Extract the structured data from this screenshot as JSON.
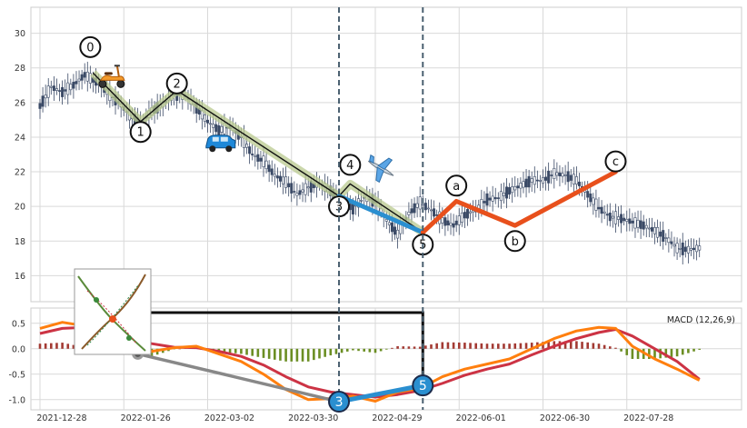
{
  "chart_data": {
    "type": "candlestick",
    "panels": [
      "price",
      "macd"
    ],
    "x_ticks": [
      "2021-12-28",
      "2022-01-26",
      "2022-03-02",
      "2022-03-30",
      "2022-04-29",
      "2022-06-01",
      "2022-06-30",
      "2022-07-28"
    ],
    "price_axis": {
      "ylim": [
        14.5,
        31.5
      ],
      "ticks": [
        "16",
        "18",
        "20",
        "22",
        "24",
        "26",
        "28",
        "30"
      ]
    },
    "macd_axis": {
      "ylim": [
        -1.2,
        0.8
      ],
      "ticks": [
        "0.5",
        "0.0",
        "-0.5",
        "-1.0"
      ],
      "label": "MACD (12,26,9)"
    },
    "price_series": [
      {
        "x": 0,
        "y": 25.8
      },
      {
        "x": 4,
        "y": 26.9
      },
      {
        "x": 8,
        "y": 26.6
      },
      {
        "x": 12,
        "y": 27.0
      },
      {
        "x": 16,
        "y": 27.6
      },
      {
        "x": 20,
        "y": 27.2
      },
      {
        "x": 24,
        "y": 26.6
      },
      {
        "x": 28,
        "y": 26.0
      },
      {
        "x": 32,
        "y": 25.3
      },
      {
        "x": 36,
        "y": 24.8
      },
      {
        "x": 40,
        "y": 25.5
      },
      {
        "x": 44,
        "y": 25.9
      },
      {
        "x": 48,
        "y": 26.5
      },
      {
        "x": 52,
        "y": 26.4
      },
      {
        "x": 56,
        "y": 25.7
      },
      {
        "x": 60,
        "y": 24.9
      },
      {
        "x": 64,
        "y": 24.4
      },
      {
        "x": 68,
        "y": 24.6
      },
      {
        "x": 72,
        "y": 24.0
      },
      {
        "x": 76,
        "y": 23.0
      },
      {
        "x": 80,
        "y": 22.6
      },
      {
        "x": 84,
        "y": 21.8
      },
      {
        "x": 88,
        "y": 21.4
      },
      {
        "x": 92,
        "y": 20.7
      },
      {
        "x": 96,
        "y": 21.1
      },
      {
        "x": 100,
        "y": 21.3
      },
      {
        "x": 104,
        "y": 20.9
      },
      {
        "x": 108,
        "y": 20.2
      },
      {
        "x": 112,
        "y": 19.9
      },
      {
        "x": 116,
        "y": 20.5
      },
      {
        "x": 120,
        "y": 20.3
      },
      {
        "x": 124,
        "y": 19.2
      },
      {
        "x": 128,
        "y": 18.4
      },
      {
        "x": 132,
        "y": 19.6
      },
      {
        "x": 136,
        "y": 20.2
      },
      {
        "x": 140,
        "y": 19.8
      },
      {
        "x": 144,
        "y": 19.2
      },
      {
        "x": 148,
        "y": 18.9
      },
      {
        "x": 152,
        "y": 19.5
      },
      {
        "x": 156,
        "y": 19.8
      },
      {
        "x": 160,
        "y": 20.4
      },
      {
        "x": 164,
        "y": 20.5
      },
      {
        "x": 168,
        "y": 20.9
      },
      {
        "x": 172,
        "y": 21.2
      },
      {
        "x": 176,
        "y": 21.5
      },
      {
        "x": 180,
        "y": 21.5
      },
      {
        "x": 184,
        "y": 21.9
      },
      {
        "x": 188,
        "y": 21.8
      },
      {
        "x": 192,
        "y": 21.5
      },
      {
        "x": 196,
        "y": 20.7
      },
      {
        "x": 200,
        "y": 19.9
      },
      {
        "x": 204,
        "y": 19.4
      },
      {
        "x": 208,
        "y": 19.3
      },
      {
        "x": 212,
        "y": 19.1
      },
      {
        "x": 216,
        "y": 18.9
      },
      {
        "x": 220,
        "y": 18.6
      },
      {
        "x": 224,
        "y": 18.2
      },
      {
        "x": 228,
        "y": 17.6
      },
      {
        "x": 232,
        "y": 17.5
      },
      {
        "x": 236,
        "y": 17.6
      }
    ],
    "wave_labels": [
      {
        "label": "0",
        "x": 18,
        "y": 29.2
      },
      {
        "label": "1",
        "x": 36,
        "y": 24.3
      },
      {
        "label": "2",
        "x": 49,
        "y": 27.1
      },
      {
        "label": "3",
        "x": 107,
        "y": 20.0
      },
      {
        "label": "4",
        "x": 111,
        "y": 22.4
      },
      {
        "label": "5",
        "x": 137,
        "y": 17.8
      },
      {
        "label": "a",
        "x": 149,
        "y": 21.2
      },
      {
        "label": "b",
        "x": 170,
        "y": 18.0
      },
      {
        "label": "c",
        "x": 206,
        "y": 22.6
      }
    ],
    "impulse_wave": [
      {
        "x": 19,
        "y": 27.7
      },
      {
        "x": 36,
        "y": 24.9
      },
      {
        "x": 49,
        "y": 26.7
      },
      {
        "x": 107,
        "y": 20.6
      },
      {
        "x": 111,
        "y": 21.3
      },
      {
        "x": 137,
        "y": 18.5
      }
    ],
    "wave_3_5_segment": [
      {
        "x": 107,
        "y": 20.6
      },
      {
        "x": 137,
        "y": 18.5
      }
    ],
    "corrective_wave": [
      {
        "x": 137,
        "y": 18.5
      },
      {
        "x": 149,
        "y": 20.3
      },
      {
        "x": 170,
        "y": 18.9
      },
      {
        "x": 206,
        "y": 22.0
      }
    ],
    "vertical_markers_x": [
      107,
      137
    ],
    "macd": [
      {
        "x": 0,
        "y": 0.4
      },
      {
        "x": 8,
        "y": 0.52
      },
      {
        "x": 16,
        "y": 0.45
      },
      {
        "x": 24,
        "y": 0.3
      },
      {
        "x": 32,
        "y": 0.1
      },
      {
        "x": 40,
        "y": -0.05
      },
      {
        "x": 48,
        "y": 0.02
      },
      {
        "x": 56,
        "y": 0.05
      },
      {
        "x": 64,
        "y": -0.1
      },
      {
        "x": 72,
        "y": -0.25
      },
      {
        "x": 80,
        "y": -0.5
      },
      {
        "x": 88,
        "y": -0.8
      },
      {
        "x": 96,
        "y": -1.0
      },
      {
        "x": 104,
        "y": -0.98
      },
      {
        "x": 112,
        "y": -0.93
      },
      {
        "x": 120,
        "y": -1.03
      },
      {
        "x": 128,
        "y": -0.85
      },
      {
        "x": 136,
        "y": -0.78
      },
      {
        "x": 144,
        "y": -0.55
      },
      {
        "x": 152,
        "y": -0.4
      },
      {
        "x": 160,
        "y": -0.3
      },
      {
        "x": 168,
        "y": -0.2
      },
      {
        "x": 176,
        "y": 0.0
      },
      {
        "x": 184,
        "y": 0.2
      },
      {
        "x": 192,
        "y": 0.35
      },
      {
        "x": 200,
        "y": 0.42
      },
      {
        "x": 206,
        "y": 0.4
      },
      {
        "x": 212,
        "y": 0.05
      },
      {
        "x": 220,
        "y": -0.2
      },
      {
        "x": 228,
        "y": -0.4
      },
      {
        "x": 236,
        "y": -0.62
      }
    ],
    "signal": [
      {
        "x": 0,
        "y": 0.3
      },
      {
        "x": 8,
        "y": 0.4
      },
      {
        "x": 16,
        "y": 0.42
      },
      {
        "x": 24,
        "y": 0.35
      },
      {
        "x": 32,
        "y": 0.22
      },
      {
        "x": 40,
        "y": 0.1
      },
      {
        "x": 48,
        "y": 0.03
      },
      {
        "x": 56,
        "y": 0.02
      },
      {
        "x": 64,
        "y": -0.05
      },
      {
        "x": 72,
        "y": -0.15
      },
      {
        "x": 80,
        "y": -0.32
      },
      {
        "x": 88,
        "y": -0.55
      },
      {
        "x": 96,
        "y": -0.75
      },
      {
        "x": 104,
        "y": -0.85
      },
      {
        "x": 112,
        "y": -0.9
      },
      {
        "x": 120,
        "y": -0.95
      },
      {
        "x": 128,
        "y": -0.9
      },
      {
        "x": 136,
        "y": -0.82
      },
      {
        "x": 144,
        "y": -0.68
      },
      {
        "x": 152,
        "y": -0.52
      },
      {
        "x": 160,
        "y": -0.4
      },
      {
        "x": 168,
        "y": -0.3
      },
      {
        "x": 176,
        "y": -0.12
      },
      {
        "x": 184,
        "y": 0.05
      },
      {
        "x": 192,
        "y": 0.2
      },
      {
        "x": 200,
        "y": 0.32
      },
      {
        "x": 206,
        "y": 0.38
      },
      {
        "x": 212,
        "y": 0.25
      },
      {
        "x": 220,
        "y": 0.0
      },
      {
        "x": 228,
        "y": -0.25
      },
      {
        "x": 236,
        "y": -0.6
      }
    ],
    "macd_markers": [
      {
        "label": "3",
        "x": 107,
        "y": -1.04
      },
      {
        "label": "5",
        "x": 137,
        "y": -0.72
      }
    ],
    "macd_gray_point": {
      "x": 35,
      "y": -0.1
    },
    "colors": {
      "candle": "#3b4a66",
      "impulse_line": "#111111",
      "impulse_band": "#b9c98f",
      "wave_blue": "#2a8fd0",
      "wave_orange": "#e8501c",
      "macd_line": "#ff7f0e",
      "signal_line": "#cc3344",
      "hist_pos": "#a33a33",
      "hist_neg": "#6b8e23",
      "grid": "#d9d9d9",
      "marker_dashed": "#4a6070",
      "gray_link": "#888888"
    },
    "icons": [
      "scooter-icon",
      "car-icon",
      "airplane-icon",
      "inset-thumbnail"
    ]
  }
}
